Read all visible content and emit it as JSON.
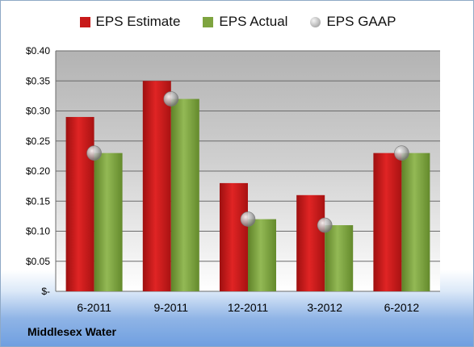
{
  "chart_data": {
    "type": "bar",
    "categories": [
      "6-2011",
      "9-2011",
      "12-2011",
      "3-2012",
      "6-2012"
    ],
    "series": [
      {
        "name": "EPS Estimate",
        "values": [
          0.29,
          0.35,
          0.18,
          0.16,
          0.23
        ],
        "color": "#c81a1a"
      },
      {
        "name": "EPS Actual",
        "values": [
          0.23,
          0.32,
          0.12,
          0.11,
          0.23
        ],
        "color": "#7ea43f"
      },
      {
        "name": "EPS GAAP",
        "values": [
          0.23,
          0.32,
          0.12,
          0.11,
          0.23
        ],
        "color": "#b8b8b8",
        "marker": "sphere"
      }
    ],
    "ylim": [
      0,
      0.4
    ],
    "yticks": [
      0,
      0.05,
      0.1,
      0.15,
      0.2,
      0.25,
      0.3,
      0.35,
      0.4
    ],
    "ytick_labels": [
      "$-",
      "$0.05",
      "$0.10",
      "$0.15",
      "$0.20",
      "$0.25",
      "$0.30",
      "$0.35",
      "$0.40"
    ],
    "grid": true,
    "legend_position": "top"
  },
  "company": "Middlesex Water"
}
